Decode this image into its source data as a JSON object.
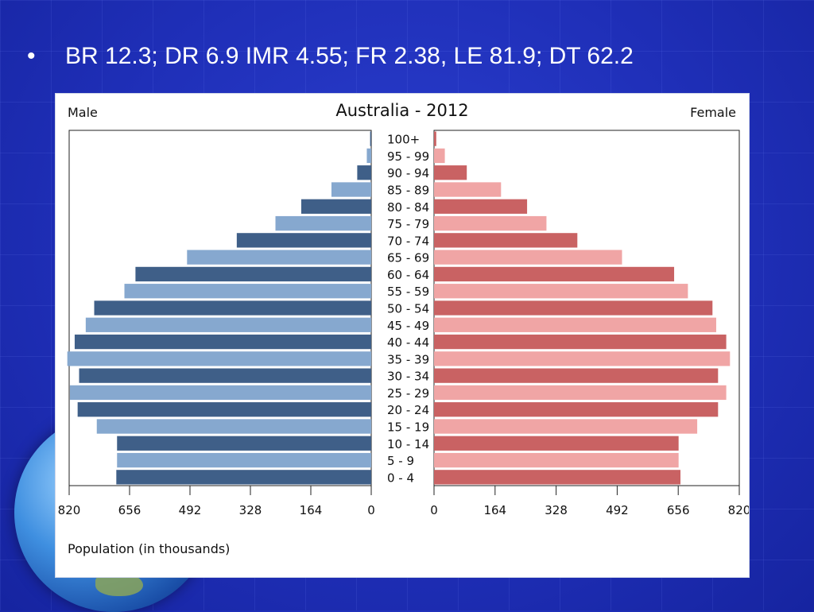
{
  "slide": {
    "bullet": "•",
    "text": "BR 12.3; DR 6.9 IMR 4.55; FR 2.38,  LE 81.9; DT 62.2"
  },
  "chart_data": {
    "type": "bar",
    "title": "Australia - 2012",
    "left_label": "Male",
    "right_label": "Female",
    "xlabel": "Population (in thousands)",
    "xlim": [
      0,
      820
    ],
    "ticks": [
      820,
      656,
      492,
      328,
      164,
      0
    ],
    "categories": [
      "100+",
      "95 - 99",
      "90 - 94",
      "85 - 89",
      "80 - 84",
      "75 - 79",
      "70 - 74",
      "65 - 69",
      "60 - 64",
      "55 - 59",
      "50 - 54",
      "45 - 49",
      "40 - 44",
      "35 - 39",
      "30 - 34",
      "25 - 29",
      "20 - 24",
      "15 - 19",
      "10 - 14",
      "5 - 9",
      "0 - 4"
    ],
    "series": [
      {
        "name": "Male",
        "values": [
          3,
          12,
          38,
          108,
          190,
          260,
          365,
          500,
          640,
          670,
          752,
          775,
          805,
          825,
          793,
          818,
          797,
          745,
          690,
          690,
          692
        ]
      },
      {
        "name": "Female",
        "values": [
          6,
          29,
          88,
          180,
          250,
          302,
          385,
          505,
          645,
          682,
          748,
          758,
          785,
          795,
          763,
          785,
          763,
          707,
          657,
          657,
          662
        ]
      }
    ],
    "colors": {
      "male_dark": "#3f5f88",
      "male_light": "#86a8cf",
      "female_dark": "#c96263",
      "female_light": "#f0a5a5"
    }
  }
}
